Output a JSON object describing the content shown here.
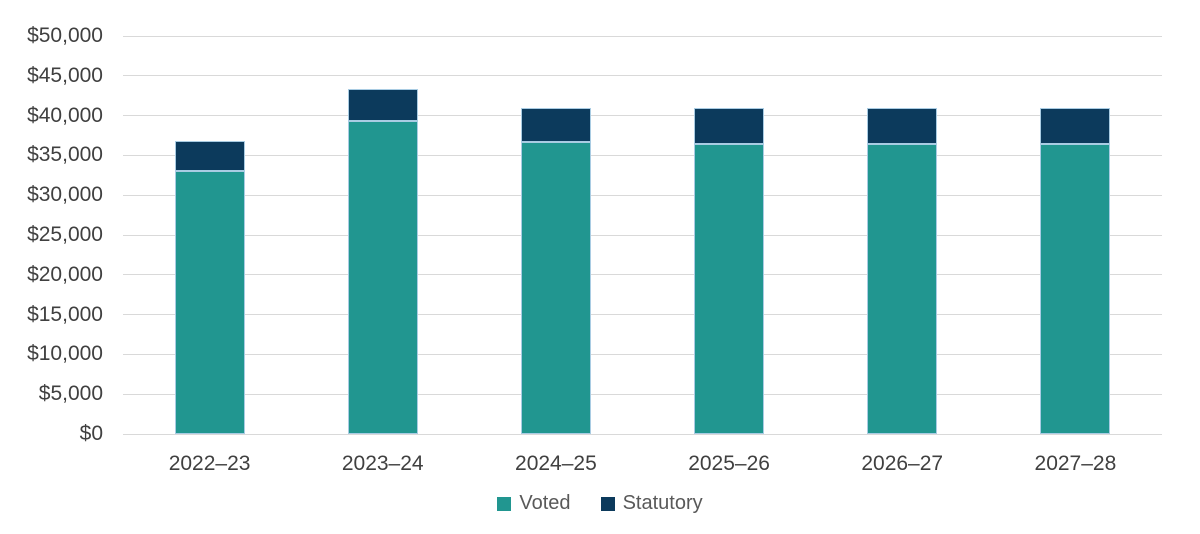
{
  "chart_data": {
    "type": "bar",
    "stacked": true,
    "title": "",
    "xlabel": "",
    "ylabel": "",
    "categories": [
      "2022–23",
      "2023–24",
      "2024–25",
      "2025–26",
      "2026–27",
      "2027–28"
    ],
    "series": [
      {
        "name": "Voted",
        "color": "#219690",
        "values": [
          33000,
          39300,
          36700,
          36400,
          36400,
          36400
        ]
      },
      {
        "name": "Statutory",
        "color": "#0c3a5c",
        "values": [
          3800,
          4100,
          4300,
          4600,
          4600,
          4600
        ]
      }
    ],
    "totals": [
      36800,
      43400,
      41000,
      41000,
      41000,
      41000
    ],
    "ylim": [
      0,
      50000
    ],
    "y_tick_step": 5000,
    "y_tick_labels": [
      "$0",
      "$5,000",
      "$10,000",
      "$15,000",
      "$20,000",
      "$25,000",
      "$30,000",
      "$35,000",
      "$40,000",
      "$45,000",
      "$50,000"
    ],
    "grid": "horizontal",
    "gridline_color": "#d9d9d9",
    "axis_label_color": "#404040",
    "bar_border_color": "#a9cce3",
    "legend_position": "bottom",
    "legend_text_color": "#595959",
    "legend_entries": [
      "Voted",
      "Statutory"
    ]
  }
}
